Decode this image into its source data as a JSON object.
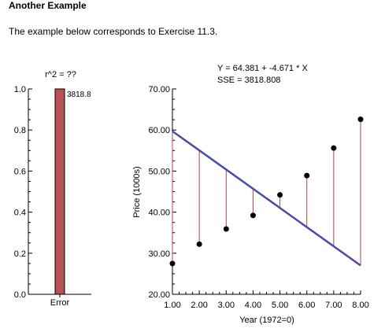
{
  "page": {
    "heading": "Another Example",
    "intro": "The example below corresponds to Exercise 11.3."
  },
  "chart_data": [
    {
      "type": "bar",
      "title": "r^2 = ??",
      "categories": [
        "Error"
      ],
      "values": [
        1.0
      ],
      "data_labels": [
        "3818.8"
      ],
      "ylim": [
        0.0,
        1.0
      ],
      "y_ticks": [
        "0.0",
        "0.2",
        "0.4",
        "0.6",
        "0.8",
        "1.0"
      ],
      "xlabel": "",
      "ylabel": "",
      "bar_color": "#b85252"
    },
    {
      "type": "scatter",
      "title": "Y = 64.381 + -4.671 * X",
      "subtitle": "SSE = 3818.808",
      "xlabel": "Year (1972=0)",
      "ylabel": "Price (1000s)",
      "xlim": [
        1.0,
        8.0
      ],
      "ylim": [
        20.0,
        70.0
      ],
      "x_ticks": [
        "1.00",
        "2.00",
        "3.00",
        "4.00",
        "5.00",
        "6.00",
        "7.00",
        "8.00"
      ],
      "y_ticks": [
        "20.00",
        "30.00",
        "40.00",
        "50.00",
        "60.00",
        "70.00"
      ],
      "x": [
        1,
        2,
        3,
        4,
        5,
        6,
        7,
        8
      ],
      "y": [
        27.5,
        32.2,
        35.9,
        39.2,
        44.2,
        48.9,
        55.6,
        62.6
      ],
      "fit": {
        "intercept": 64.381,
        "slope": -4.671
      },
      "grid": false,
      "line_color": "#4a4aaa",
      "residual_color": "#b04545",
      "point_color": "#000000"
    }
  ]
}
